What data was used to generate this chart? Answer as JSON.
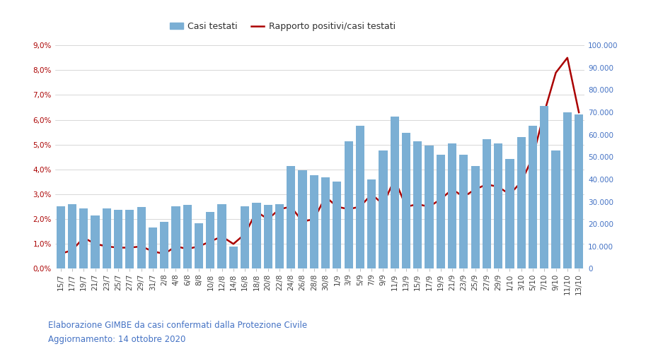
{
  "x_labels": [
    "15/7",
    "17/7",
    "19/7",
    "21/7",
    "23/7",
    "25/7",
    "27/7",
    "29/7",
    "31/7",
    "2/8",
    "4/8",
    "6/8",
    "8/8",
    "10/8",
    "12/8",
    "14/8",
    "16/8",
    "18/8",
    "20/8",
    "22/8",
    "24/8",
    "26/8",
    "28/8",
    "30/8",
    "1/9",
    "3/9",
    "5/9",
    "7/9",
    "9/9",
    "11/9",
    "13/9",
    "15/9",
    "17/9",
    "19/9",
    "21/9",
    "23/9",
    "25/9",
    "27/9",
    "29/9",
    "1/10",
    "3/10",
    "5/10",
    "7/10",
    "9/10",
    "11/10",
    "13/10"
  ],
  "bar_values": [
    28000,
    29000,
    27000,
    24000,
    27000,
    26500,
    26500,
    27500,
    18500,
    21000,
    28000,
    28500,
    20500,
    25500,
    29000,
    10000,
    28000,
    29500,
    28500,
    29000,
    46000,
    44000,
    42000,
    41000,
    39000,
    57000,
    64000,
    40000,
    53000,
    68000,
    61000,
    57000,
    55000,
    51000,
    56000,
    51000,
    46000,
    58000,
    56000,
    49000,
    59000,
    64000,
    73000,
    53000,
    70000,
    69000
  ],
  "line_values": [
    0.006,
    0.0075,
    0.0125,
    0.01,
    0.009,
    0.0085,
    0.0085,
    0.009,
    0.007,
    0.006,
    0.009,
    0.008,
    0.009,
    0.011,
    0.013,
    0.01,
    0.014,
    0.023,
    0.02,
    0.024,
    0.025,
    0.019,
    0.02,
    0.029,
    0.025,
    0.024,
    0.025,
    0.03,
    0.026,
    0.036,
    0.025,
    0.026,
    0.025,
    0.028,
    0.032,
    0.029,
    0.032,
    0.034,
    0.033,
    0.03,
    0.035,
    0.045,
    0.063,
    0.079,
    0.085,
    0.063
  ],
  "bar_color": "#7BAFD4",
  "line_color": "#AA0000",
  "background_color": "#FFFFFF",
  "grid_color": "#C8C8C8",
  "left_axis_color": "#AA0000",
  "right_axis_color": "#4472C4",
  "ylim_left": [
    0.0,
    0.09
  ],
  "ylim_right": [
    0,
    100000
  ],
  "yticks_left": [
    0.0,
    0.01,
    0.02,
    0.03,
    0.04,
    0.05,
    0.06,
    0.07,
    0.08,
    0.09
  ],
  "ytick_labels_left": [
    "0,0%",
    "1,0%",
    "2,0%",
    "3,0%",
    "4,0%",
    "5,0%",
    "6,0%",
    "7,0%",
    "8,0%",
    "9,0%"
  ],
  "yticks_right": [
    0,
    10000,
    20000,
    30000,
    40000,
    50000,
    60000,
    70000,
    80000,
    90000,
    100000
  ],
  "ytick_labels_right": [
    "0",
    "10.000",
    "20.000",
    "30.000",
    "40.000",
    "50.000",
    "60.000",
    "70.000",
    "80.000",
    "90.000",
    "100.000"
  ],
  "legend_bar_label": "Casi testati",
  "legend_line_label": "Rapporto positivi/casi testati",
  "footer_line1": "Elaborazione GIMBE da casi confermati dalla Protezione Civile",
  "footer_line2": "Aggiornamento: 14 ottobre 2020",
  "font_size_ticks": 7.5,
  "font_size_legend": 9,
  "font_size_footer": 8.5
}
